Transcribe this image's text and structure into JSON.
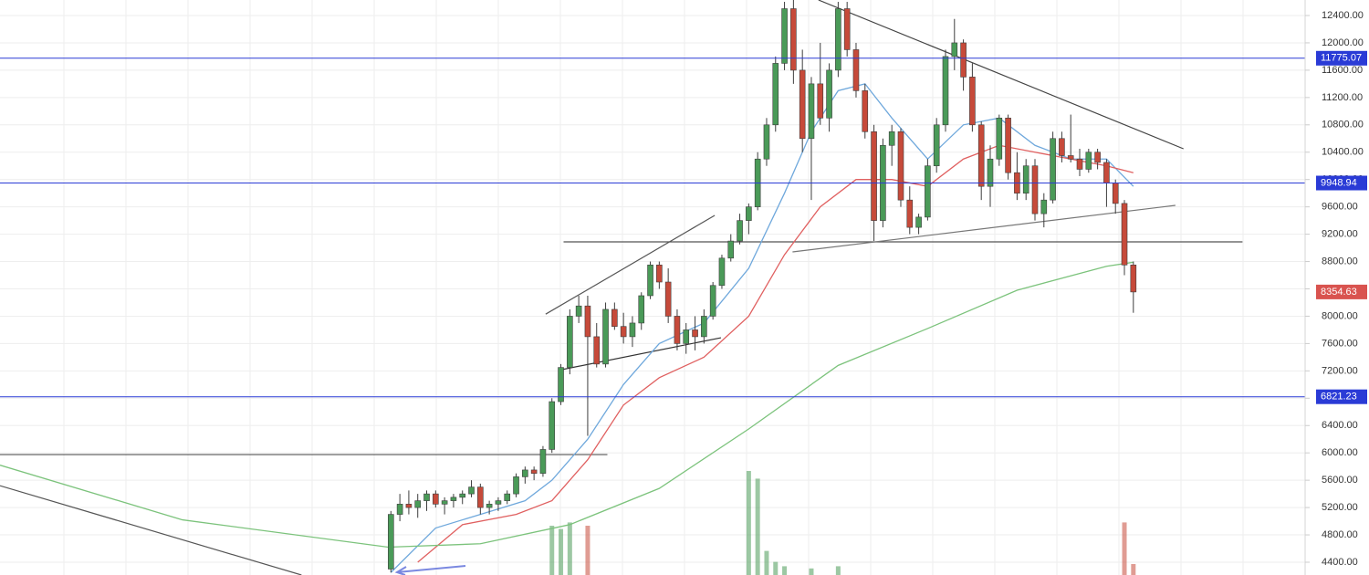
{
  "chart_data": {
    "type": "candlestick",
    "up_color": "#4a9a58",
    "down_color": "#c64a3a",
    "wick_color": "#3d3d3d",
    "xlim": [
      -43.7,
      102.2
    ],
    "ylim": [
      4213,
      12627
    ],
    "yticks": [
      {
        "value": 4400,
        "label": "4400.00"
      },
      {
        "value": 4800,
        "label": "4800.00"
      },
      {
        "value": 5200,
        "label": "5200.00"
      },
      {
        "value": 5600,
        "label": "5600.00"
      },
      {
        "value": 6000,
        "label": "6000.00"
      },
      {
        "value": 6400,
        "label": "6400.00"
      },
      {
        "value": 6800,
        "label": "6800.00"
      },
      {
        "value": 7200,
        "label": "7200.00"
      },
      {
        "value": 7600,
        "label": "7600.00"
      },
      {
        "value": 8000,
        "label": "8000.00"
      },
      {
        "value": 8400,
        "label": "8400.00"
      },
      {
        "value": 8800,
        "label": "8800.00"
      },
      {
        "value": 9200,
        "label": "9200.00"
      },
      {
        "value": 9600,
        "label": "9600.00"
      },
      {
        "value": 10000,
        "label": "10000.00"
      },
      {
        "value": 10400,
        "label": "10400.00"
      },
      {
        "value": 10800,
        "label": "10800.00"
      },
      {
        "value": 11200,
        "label": "11200.00"
      },
      {
        "value": 11600,
        "label": "11600.00"
      },
      {
        "value": 12000,
        "label": "12000.00"
      },
      {
        "value": 12400,
        "label": "12400.00"
      }
    ],
    "grid": true,
    "open": [
      4300,
      5100,
      5250,
      5200,
      5300,
      5400,
      5250,
      5300,
      5350,
      5400,
      5500,
      5200,
      5250,
      5300,
      5400,
      5650,
      5750,
      5700,
      6050,
      6750,
      7250,
      8000,
      8150,
      7700,
      7300,
      8100,
      7850,
      7700,
      7900,
      8300,
      8750,
      8500,
      8000,
      7600,
      7800,
      7700,
      8000,
      8450,
      8850,
      9100,
      9400,
      9600,
      10300,
      10800,
      11700,
      12500,
      11600,
      10600,
      11400,
      10900,
      11600,
      12500,
      11900,
      11300,
      10700,
      9400,
      10500,
      10700,
      9700,
      9300,
      9450,
      10200,
      10800,
      11800,
      12000,
      11500,
      10800,
      9900,
      10300,
      10900,
      10100,
      9800,
      10200,
      9500,
      9700,
      10600,
      10350,
      10300,
      10150,
      10400,
      10250,
      9950,
      9650,
      8750
    ],
    "high": [
      5150,
      5400,
      5450,
      5400,
      5450,
      5450,
      5350,
      5400,
      5450,
      5600,
      5550,
      5300,
      5350,
      5450,
      5700,
      5800,
      5800,
      6100,
      6800,
      7300,
      8100,
      8300,
      8300,
      7900,
      8200,
      8200,
      8050,
      8000,
      8350,
      8800,
      8800,
      8700,
      8100,
      7900,
      8000,
      8100,
      8500,
      8900,
      9200,
      9500,
      9650,
      10400,
      10900,
      11800,
      12600,
      12650,
      11900,
      11500,
      12000,
      11700,
      12600,
      12600,
      12000,
      11400,
      10800,
      10600,
      10800,
      10750,
      9900,
      9500,
      10300,
      10900,
      11900,
      12350,
      12050,
      11700,
      10850,
      10500,
      10950,
      10950,
      10400,
      10300,
      10300,
      9800,
      10700,
      10700,
      10950,
      10450,
      10450,
      10450,
      10300,
      10000,
      9700,
      8800
    ],
    "low": [
      4250,
      5000,
      5100,
      5050,
      5150,
      5200,
      5100,
      5200,
      5250,
      5350,
      5100,
      5100,
      5150,
      5250,
      5350,
      5550,
      5600,
      5650,
      6000,
      6700,
      7150,
      7900,
      6250,
      7250,
      7250,
      7800,
      7600,
      7550,
      7800,
      8250,
      8400,
      7900,
      7500,
      7450,
      7500,
      7600,
      7950,
      8400,
      8800,
      9050,
      9200,
      9550,
      10200,
      10700,
      11600,
      11400,
      10400,
      9700,
      10800,
      10700,
      11500,
      11800,
      11200,
      10600,
      9100,
      9300,
      10200,
      9600,
      9200,
      9200,
      9400,
      10100,
      10700,
      11600,
      11300,
      10700,
      9700,
      9600,
      10200,
      10000,
      9700,
      9700,
      9400,
      9300,
      9650,
      10250,
      10250,
      10050,
      10100,
      10150,
      9600,
      9500,
      8600,
      8050
    ],
    "close": [
      5100,
      5250,
      5200,
      5300,
      5400,
      5250,
      5300,
      5350,
      5400,
      5500,
      5200,
      5250,
      5300,
      5400,
      5650,
      5750,
      5700,
      6050,
      6750,
      7250,
      8000,
      8150,
      7700,
      7300,
      8100,
      7850,
      7700,
      7900,
      8300,
      8750,
      8500,
      8000,
      7600,
      7800,
      7700,
      8000,
      8450,
      8850,
      9100,
      9400,
      9600,
      10300,
      10800,
      11700,
      12500,
      11600,
      10600,
      11400,
      10900,
      11600,
      12500,
      11900,
      11300,
      10700,
      9400,
      10500,
      10700,
      9700,
      9300,
      9450,
      10200,
      10800,
      11800,
      12000,
      11500,
      10800,
      9900,
      10300,
      10900,
      10100,
      9800,
      10200,
      9500,
      9700,
      10600,
      10350,
      10300,
      10150,
      10400,
      10250,
      9950,
      9650,
      8750,
      8354.63
    ],
    "moving_averages": [
      {
        "color": "#6fa8dc",
        "x": [
          0,
          5,
          10,
          15,
          18,
          22,
          26,
          30,
          35,
          40,
          44,
          47,
          50,
          53,
          56,
          60,
          64,
          68,
          72,
          76,
          80,
          83
        ],
        "values": [
          4250,
          4900,
          5100,
          5300,
          5600,
          6200,
          7000,
          7600,
          7900,
          8700,
          9800,
          10700,
          11300,
          11400,
          10900,
          10300,
          10800,
          10900,
          10500,
          10300,
          10300,
          9900
        ]
      },
      {
        "color": "#e06060",
        "x": [
          3,
          8,
          14,
          18,
          22,
          26,
          30,
          35,
          40,
          44,
          48,
          52,
          56,
          60,
          64,
          68,
          72,
          76,
          80,
          83
        ],
        "values": [
          4400,
          4950,
          5100,
          5300,
          5900,
          6700,
          7100,
          7400,
          8000,
          8900,
          9600,
          10000,
          10000,
          9900,
          10300,
          10500,
          10400,
          10300,
          10200,
          10100
        ]
      },
      {
        "color": "#7cc37c",
        "x": [
          -43.7,
          -23.3,
          -0.3,
          10,
          20,
          30,
          40,
          50,
          60,
          70,
          80,
          83
        ],
        "values": [
          5820,
          5020,
          4620,
          4670,
          4950,
          5480,
          6350,
          7280,
          7820,
          8380,
          8730,
          8790
        ]
      }
    ],
    "price_lines": [
      {
        "value": 11775.07,
        "color": "#2a3bd6"
      },
      {
        "value": 9948.94,
        "color": "#2a3bd6"
      },
      {
        "value": 6821.23,
        "color": "#2a3bd6"
      }
    ],
    "last_price": {
      "value": 8354.63,
      "color": "#d9534f"
    },
    "drawings": [
      {
        "color": "#555555",
        "x": [
          -43.7,
          -10.0
        ],
        "y": [
          5520,
          4213
        ]
      },
      {
        "color": "#555555",
        "x": [
          -43.7,
          24.2
        ],
        "y": [
          5975,
          5975
        ]
      },
      {
        "color": "#555555",
        "x": [
          17.3,
          36.2
        ],
        "y": [
          8030,
          9475
        ]
      },
      {
        "color": "#333333",
        "x": [
          19.1,
          36.9
        ],
        "y": [
          7218,
          7685
        ]
      },
      {
        "color": "#555555",
        "x": [
          19.3,
          95.2
        ],
        "y": [
          9088,
          9088
        ]
      },
      {
        "color": "#777777",
        "x": [
          44.9,
          87.7
        ],
        "y": [
          8941,
          9622
        ]
      },
      {
        "color": "#444444",
        "x": [
          47.8,
          88.6
        ],
        "y": [
          12627,
          10450
        ]
      }
    ],
    "volume": {
      "x": [
        18,
        19,
        20,
        22,
        40,
        41,
        42,
        43,
        44,
        47,
        50,
        82,
        83
      ],
      "values": [
        45,
        42,
        48,
        45,
        95,
        88,
        22,
        12,
        8,
        6,
        8,
        48,
        10
      ],
      "vlim": [
        0,
        100
      ]
    }
  }
}
